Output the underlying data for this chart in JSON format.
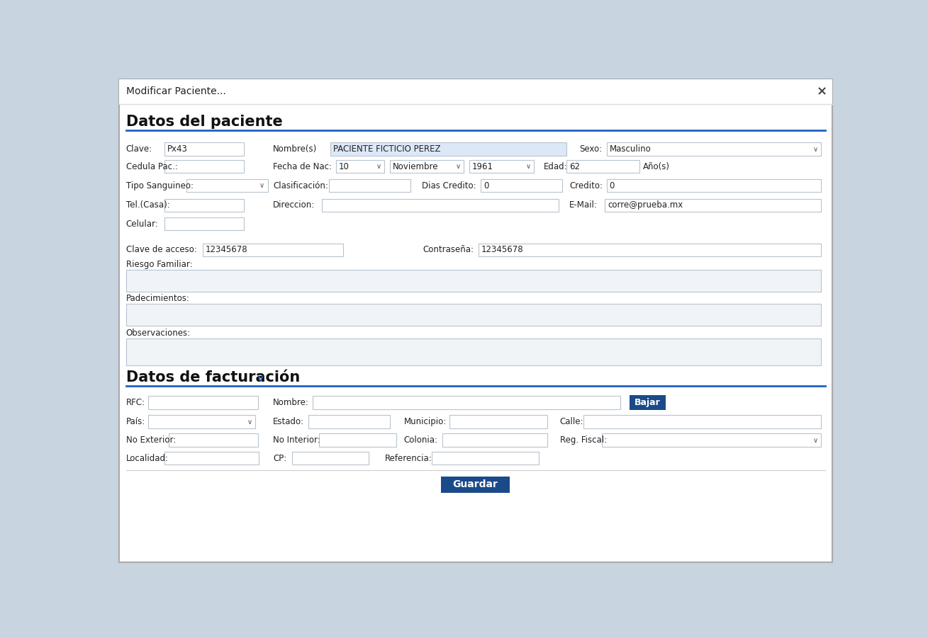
{
  "title": "Modificar Paciente...",
  "close_btn": "×",
  "bg_color": "#ffffff",
  "border_color": "#cccccc",
  "input_border": "#b8c4ce",
  "blue_line": "#2060c0",
  "section1_title": "Datos del paciente",
  "section2_title": "Datos de facturación",
  "section2_arrow": "∨",
  "guardar_btn_color": "#1a4a8a",
  "bajar_btn_color": "#1a4a8a",
  "outer_bg": "#c8d4e0",
  "titlebar_border": "#dddddd",
  "input_empty_bg": "#ffffff",
  "input_highlight_bg": "#dce8f8",
  "textarea_bg": "#f0f4f8",
  "bottom_bar_bg": "#f5f7fa"
}
